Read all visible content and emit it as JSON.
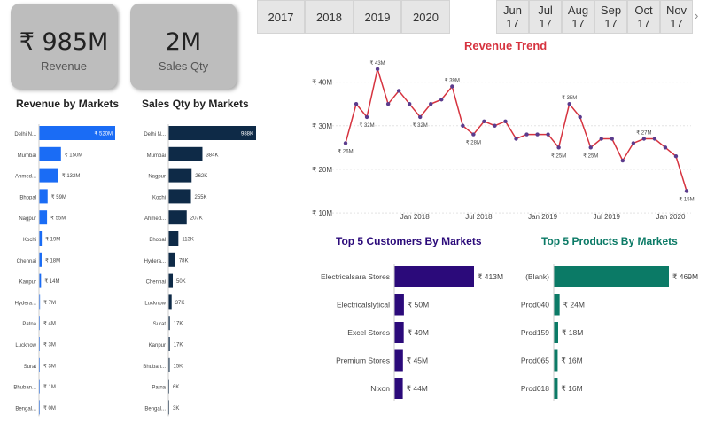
{
  "kpis": {
    "revenue": {
      "value": "₹ 985M",
      "label": "Revenue"
    },
    "sales_qty": {
      "value": "2M",
      "label": "Sales Qty"
    }
  },
  "year_slicer": [
    "2017",
    "2018",
    "2019",
    "2020"
  ],
  "month_slicer": [
    {
      "month": "Jun",
      "year": "17"
    },
    {
      "month": "Jul",
      "year": "17"
    },
    {
      "month": "Aug",
      "year": "17"
    },
    {
      "month": "Sep",
      "year": "17"
    },
    {
      "month": "Oct",
      "year": "17"
    },
    {
      "month": "Nov",
      "year": "17"
    }
  ],
  "month_slicer_next": "›",
  "colors": {
    "revenue_bar": "#1a6cf5",
    "qty_bar": "#0e2a47",
    "customer_bar": "#2b0a7a",
    "product_bar": "#0b7a66",
    "trend_line": "#d6333f",
    "trend_point": "#5b3b8c",
    "trend_title": "#d6333f",
    "customer_title": "#2b0a7a",
    "product_title": "#0b7a66"
  },
  "chart_data": [
    {
      "type": "bar",
      "title": "Revenue by Markets",
      "orientation": "horizontal",
      "categories": [
        "Delhi N...",
        "Mumbai",
        "Ahmed...",
        "Bhopal",
        "Nagpur",
        "Kochi",
        "Chennai",
        "Kanpur",
        "Hydera...",
        "Patna",
        "Lucknow",
        "Surat",
        "Bhuban...",
        "Bengal..."
      ],
      "values": [
        520,
        150,
        132,
        59,
        55,
        19,
        18,
        14,
        7,
        4,
        3,
        3,
        1,
        0
      ],
      "labels": [
        "₹ 520M",
        "₹ 150M",
        "₹ 132M",
        "₹ 59M",
        "₹ 55M",
        "₹ 19M",
        "₹ 18M",
        "₹ 14M",
        "₹ 7M",
        "₹ 4M",
        "₹ 3M",
        "₹ 3M",
        "₹ 1M",
        "₹ 0M"
      ],
      "unit": "M"
    },
    {
      "type": "bar",
      "title": "Sales Qty by Markets",
      "orientation": "horizontal",
      "categories": [
        "Delhi N...",
        "Mumbai",
        "Nagpur",
        "Kochi",
        "Ahmed...",
        "Bhopal",
        "Hydera...",
        "Chennai",
        "Lucknow",
        "Surat",
        "Kanpur",
        "Bhuban...",
        "Patna",
        "Bengal..."
      ],
      "values": [
        988,
        384,
        262,
        255,
        207,
        113,
        78,
        50,
        37,
        17,
        17,
        15,
        6,
        3
      ],
      "labels": [
        "988K",
        "384K",
        "262K",
        "255K",
        "207K",
        "113K",
        "78K",
        "50K",
        "37K",
        "17K",
        "17K",
        "15K",
        "6K",
        "3K"
      ],
      "unit": "K"
    },
    {
      "type": "line",
      "title": "Revenue Trend",
      "x_ticks": [
        "Jan 2018",
        "Jul 2018",
        "Jan 2019",
        "Jul 2019",
        "Jan 2020"
      ],
      "y_ticks": [
        "₹ 10M",
        "₹ 20M",
        "₹ 30M",
        "₹ 40M"
      ],
      "y_tick_values": [
        10,
        20,
        30,
        40
      ],
      "ylim": [
        9,
        45
      ],
      "values": [
        26,
        35,
        32,
        43,
        35,
        38,
        35,
        32,
        35,
        36,
        39,
        30,
        28,
        31,
        30,
        31,
        27,
        28,
        28,
        28,
        25,
        35,
        32,
        25,
        27,
        27,
        22,
        26,
        27,
        27,
        25,
        23,
        15
      ],
      "point_labels": [
        {
          "index": 0,
          "text": "₹ 26M"
        },
        {
          "index": 2,
          "text": "₹ 32M"
        },
        {
          "index": 3,
          "text": "₹ 43M"
        },
        {
          "index": 7,
          "text": "₹ 32M"
        },
        {
          "index": 10,
          "text": "₹ 39M"
        },
        {
          "index": 12,
          "text": "₹ 28M"
        },
        {
          "index": 20,
          "text": "₹ 25M"
        },
        {
          "index": 21,
          "text": "₹ 35M"
        },
        {
          "index": 23,
          "text": "₹ 25M"
        },
        {
          "index": 28,
          "text": "₹ 27M"
        },
        {
          "index": 32,
          "text": "₹ 15M"
        }
      ]
    },
    {
      "type": "bar",
      "title": "Top 5 Customers By Markets",
      "orientation": "horizontal",
      "categories": [
        "Electricalsara Stores",
        "Electricalslytical",
        "Excel Stores",
        "Premium Stores",
        "Nixon"
      ],
      "values": [
        413,
        50,
        49,
        45,
        44
      ],
      "labels": [
        "₹ 413M",
        "₹ 50M",
        "₹ 49M",
        "₹ 45M",
        "₹ 44M"
      ],
      "unit": "M"
    },
    {
      "type": "bar",
      "title": "Top 5 Products By Markets",
      "orientation": "horizontal",
      "categories": [
        "(Blank)",
        "Prod040",
        "Prod159",
        "Prod065",
        "Prod018"
      ],
      "values": [
        469,
        24,
        18,
        16,
        16
      ],
      "labels": [
        "₹ 469M",
        "₹ 24M",
        "₹ 18M",
        "₹ 16M",
        "₹ 16M"
      ],
      "unit": "M"
    }
  ]
}
